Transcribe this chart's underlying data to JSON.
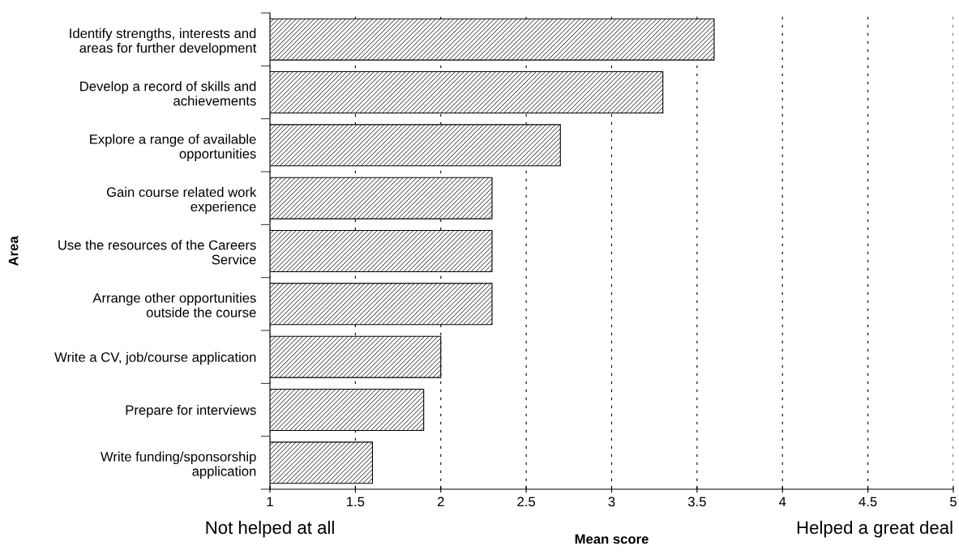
{
  "chart_data": {
    "type": "bar",
    "orientation": "horizontal",
    "categories": [
      "Identify strengths, interests and areas for further development",
      "Develop a record of skills and achievements",
      "Explore a range of available opportunities",
      "Gain course related work experience",
      "Use the resources of the Careers Service",
      "Arrange other opportunities outside the course",
      "Write a CV, job/course application",
      "Prepare for interviews",
      "Write funding/sponsorship application"
    ],
    "values": [
      3.6,
      3.3,
      2.7,
      2.3,
      2.3,
      2.3,
      2.0,
      1.9,
      1.6
    ],
    "color": "#000000",
    "xlim": [
      1,
      5
    ],
    "xticks": [
      1,
      1.5,
      2,
      2.5,
      3,
      3.5,
      4,
      4.5,
      5
    ],
    "xlabel": "Mean score",
    "ylabel": "Area",
    "annotations": [
      "Not helped at all",
      "Helped a great deal"
    ],
    "grid": "x",
    "legend": false
  }
}
